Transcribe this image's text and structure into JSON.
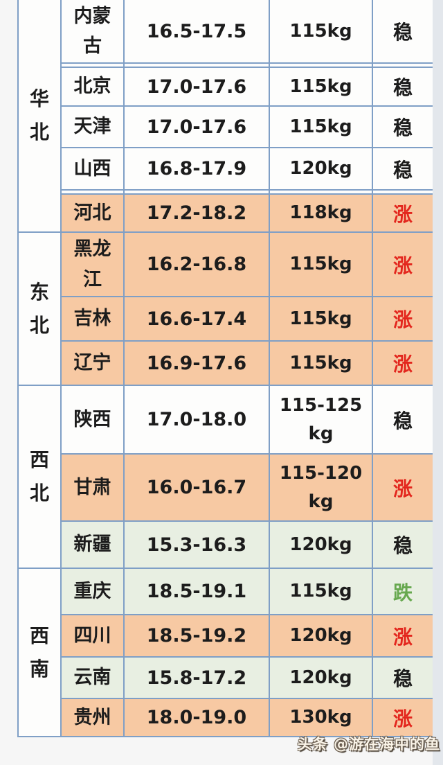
{
  "chart_data": {
    "type": "table",
    "regions": [
      {
        "name": "华北",
        "row_count": 5
      },
      {
        "name": "东北",
        "row_count": 3
      },
      {
        "name": "西北",
        "row_count": 3
      },
      {
        "name": "西南",
        "row_count": 4
      }
    ],
    "rows": [
      {
        "province": "内蒙古",
        "price": "16.5-17.5",
        "weight": "115kg",
        "trend": "稳",
        "trend_type": "stable",
        "hl": "white"
      },
      {
        "province": "北京",
        "price": "17.0-17.6",
        "weight": "115kg",
        "trend": "稳",
        "trend_type": "stable",
        "hl": "white"
      },
      {
        "province": "天津",
        "price": "17.0-17.6",
        "weight": "115kg",
        "trend": "稳",
        "trend_type": "stable",
        "hl": "white"
      },
      {
        "province": "山西",
        "price": "16.8-17.9",
        "weight": "120kg",
        "trend": "稳",
        "trend_type": "stable",
        "hl": "white"
      },
      {
        "province": "河北",
        "price": "17.2-18.2",
        "weight": "118kg",
        "trend": "涨",
        "trend_type": "up",
        "hl": "orange"
      },
      {
        "province": "黑龙江",
        "price": "16.2-16.8",
        "weight": "115kg",
        "trend": "涨",
        "trend_type": "up",
        "hl": "orange"
      },
      {
        "province": "吉林",
        "price": "16.6-17.4",
        "weight": "115kg",
        "trend": "涨",
        "trend_type": "up",
        "hl": "orange"
      },
      {
        "province": "辽宁",
        "price": "16.9-17.6",
        "weight": "115kg",
        "trend": "涨",
        "trend_type": "up",
        "hl": "orange"
      },
      {
        "province": "陕西",
        "price": "17.0-18.0",
        "weight": "115-125\nkg",
        "trend": "稳",
        "trend_type": "stable",
        "hl": "white"
      },
      {
        "province": "甘肃",
        "price": "16.0-16.7",
        "weight": "115-120\nkg",
        "trend": "涨",
        "trend_type": "up",
        "hl": "orange"
      },
      {
        "province": "新疆",
        "price": "15.3-16.3",
        "weight": "120kg",
        "trend": "稳",
        "trend_type": "stable",
        "hl": "green"
      },
      {
        "province": "重庆",
        "price": "18.5-19.1",
        "weight": "115kg",
        "trend": "跌",
        "trend_type": "down",
        "hl": "green"
      },
      {
        "province": "四川",
        "price": "18.5-19.2",
        "weight": "120kg",
        "trend": "涨",
        "trend_type": "up",
        "hl": "orange"
      },
      {
        "province": "云南",
        "price": "15.8-17.2",
        "weight": "120kg",
        "trend": "稳",
        "trend_type": "stable",
        "hl": "green"
      },
      {
        "province": "贵州",
        "price": "18.0-19.0",
        "weight": "130kg",
        "trend": "涨",
        "trend_type": "up",
        "hl": "orange"
      }
    ]
  },
  "watermark": {
    "text": "头条 @游在海中的鱼"
  },
  "colors": {
    "rise_red": "#e3261d",
    "fall_green": "#67a84f",
    "stable_black": "#1c1c1c",
    "row_orange": "#f7c9a3",
    "row_green": "#e8efe2",
    "row_white": "#fdfdfc",
    "border_blue": "#7f9fc6"
  }
}
